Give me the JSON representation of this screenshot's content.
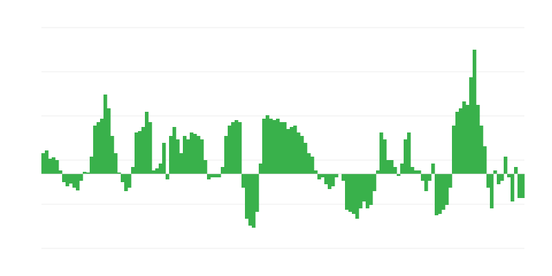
{
  "chart_data": {
    "type": "bar",
    "title": "",
    "xlabel": "",
    "ylabel": "",
    "ylim": [
      -108,
      212
    ],
    "gridlines": [
      -108,
      -44,
      20,
      84,
      148,
      212
    ],
    "grid": true,
    "legend": "none",
    "color": "#39b14b",
    "grid_color": "#ececec",
    "baseline_color": "#cccccc",
    "values": [
      30,
      34,
      22,
      24,
      20,
      5,
      -12,
      -18,
      -14,
      -20,
      -24,
      -10,
      3,
      2,
      25,
      70,
      75,
      80,
      115,
      95,
      55,
      30,
      2,
      -12,
      -25,
      -20,
      10,
      60,
      62,
      68,
      90,
      75,
      5,
      8,
      15,
      45,
      -8,
      55,
      68,
      50,
      30,
      55,
      50,
      60,
      58,
      55,
      50,
      20,
      -8,
      -5,
      -5,
      -5,
      10,
      55,
      70,
      75,
      78,
      75,
      -20,
      -65,
      -75,
      -78,
      -55,
      15,
      80,
      85,
      80,
      78,
      80,
      75,
      75,
      65,
      68,
      70,
      60,
      55,
      45,
      30,
      25,
      5,
      -8,
      -5,
      -15,
      -22,
      -18,
      -5,
      0,
      -10,
      -52,
      -55,
      -58,
      -65,
      -50,
      -40,
      -50,
      -45,
      -25,
      5,
      60,
      50,
      20,
      20,
      10,
      -3,
      15,
      50,
      60,
      10,
      5,
      5,
      -10,
      -25,
      -10,
      15,
      -60,
      -58,
      -52,
      -45,
      -20,
      70,
      90,
      95,
      105,
      100,
      140,
      180,
      100,
      70,
      40,
      -20,
      -50,
      5,
      -15,
      -10,
      25,
      -5,
      -40,
      10,
      -35,
      -35
    ]
  }
}
